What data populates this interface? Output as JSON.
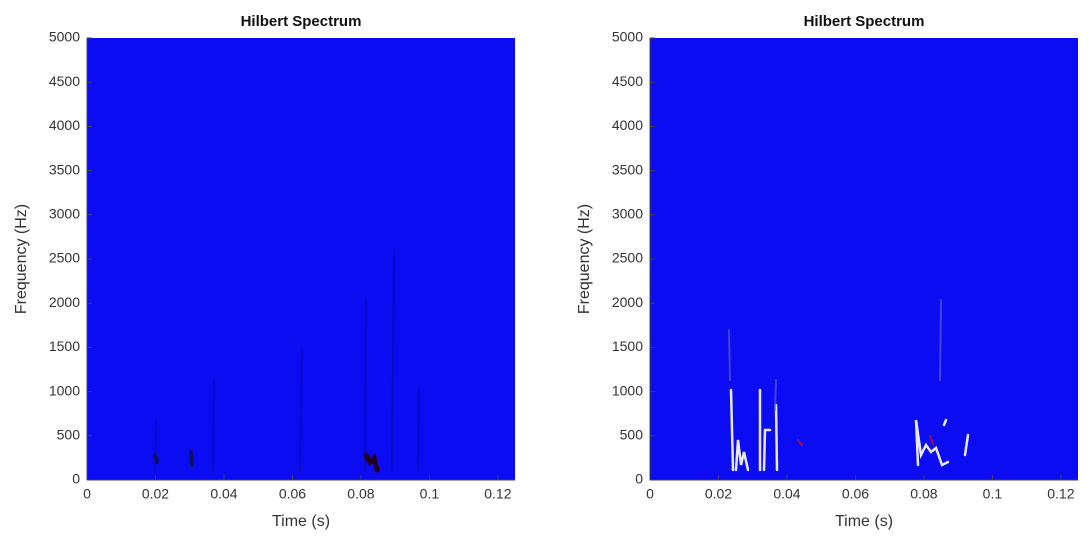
{
  "chart_data": [
    {
      "type": "heatmap",
      "title": "Hilbert Spectrum",
      "xlabel": "Time (s)",
      "ylabel": "Frequency (Hz)",
      "xlim": [
        0,
        0.125
      ],
      "xticks": [
        0,
        0.02,
        0.04,
        0.06,
        0.08,
        0.1,
        0.12
      ],
      "ylim": [
        0,
        5000
      ],
      "yticks": [
        0,
        500,
        1000,
        1500,
        2000,
        2500,
        3000,
        3500,
        4000,
        4500,
        5000
      ],
      "color": "#0b0cf2"
    },
    {
      "type": "heatmap",
      "title": "Hilbert Spectrum",
      "xlabel": "Time (s)",
      "ylabel": "Frequency (Hz)",
      "xlim": [
        0,
        0.125
      ],
      "xticks": [
        0,
        0.02,
        0.04,
        0.06,
        0.08,
        0.1,
        0.12
      ],
      "ylim": [
        0,
        5000
      ],
      "yticks": [
        0,
        500,
        1000,
        1500,
        2000,
        2500,
        3000,
        3500,
        4000,
        4500,
        5000
      ],
      "color": "#0b0cf2"
    }
  ]
}
